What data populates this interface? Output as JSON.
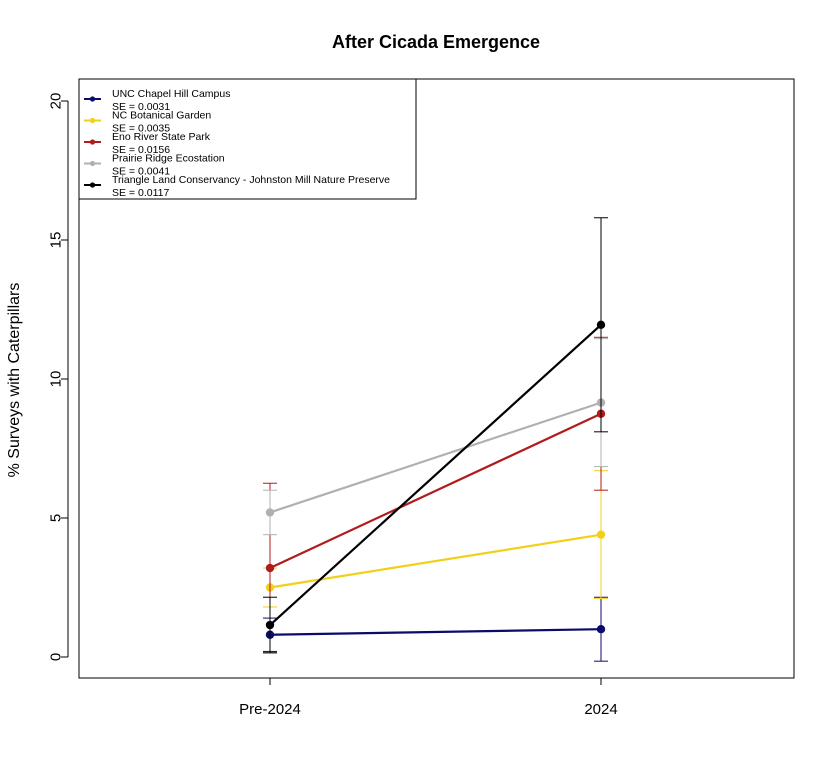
{
  "chart_data": {
    "type": "line",
    "title": "After Cicada Emergence",
    "xlabel": "",
    "ylabel": "% Surveys with Caterpillars",
    "categories": [
      "Pre-2024",
      "2024"
    ],
    "ylim": [
      0,
      20
    ],
    "yticks": [
      0,
      5,
      10,
      15,
      20
    ],
    "legend_position": "top-left",
    "series": [
      {
        "name": "UNC Chapel Hill Campus",
        "se_label": "SE =  0.0031",
        "color": "#0b0b6b",
        "values": [
          0.8,
          1.0
        ],
        "errors": [
          0.6,
          1.15
        ]
      },
      {
        "name": "NC Botanical Garden",
        "se_label": "SE =  0.0035",
        "color": "#f2d01a",
        "values": [
          2.5,
          4.4
        ],
        "errors": [
          0.7,
          2.3
        ]
      },
      {
        "name": "Eno River State Park",
        "se_label": "SE =  0.0156",
        "color": "#b01c1c",
        "values": [
          3.2,
          8.75
        ],
        "errors": [
          3.05,
          2.75
        ]
      },
      {
        "name": "Prairie Ridge Ecostation",
        "se_label": "SE =  0.0041",
        "color": "#b0b0b0",
        "values": [
          5.2,
          9.15
        ],
        "errors": [
          0.8,
          2.3
        ]
      },
      {
        "name": "Triangle Land Conservancy - Johnston Mill Nature Preserve",
        "se_label": "SE =  0.0117",
        "color": "#000000",
        "values": [
          1.15,
          11.95
        ],
        "errors": [
          1.0,
          3.85
        ]
      }
    ]
  }
}
